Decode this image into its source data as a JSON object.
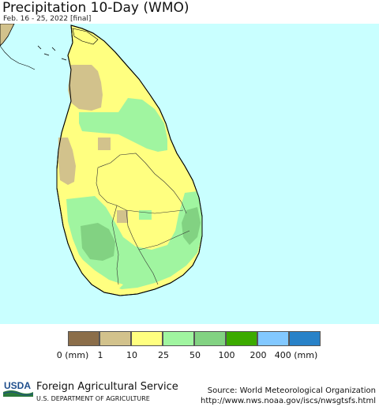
{
  "header": {
    "title": "Precipitation 10-Day (WMO)",
    "subtitle": "Feb. 16 - 25, 2022 [final]"
  },
  "map": {
    "ocean_color": "#c9ffff",
    "land_base_color": "#ffff80"
  },
  "legend": {
    "colors": [
      "#8b6e4a",
      "#d2c28c",
      "#ffff80",
      "#a0f5a0",
      "#82d282",
      "#3caa00",
      "#82c8ff",
      "#2882c8"
    ],
    "labels": [
      "0 (mm)",
      "1",
      "10",
      "25",
      "50",
      "100",
      "200",
      "400 (mm)"
    ]
  },
  "footer": {
    "logo_text": "USDA",
    "agency": "Foreign Agricultural Service",
    "department": "U.S. DEPARTMENT OF AGRICULTURE",
    "source": "Source: World Meteorological Organization",
    "source_url": "http://www.nws.noaa.gov/iscs/nwsgtsfs.html"
  }
}
